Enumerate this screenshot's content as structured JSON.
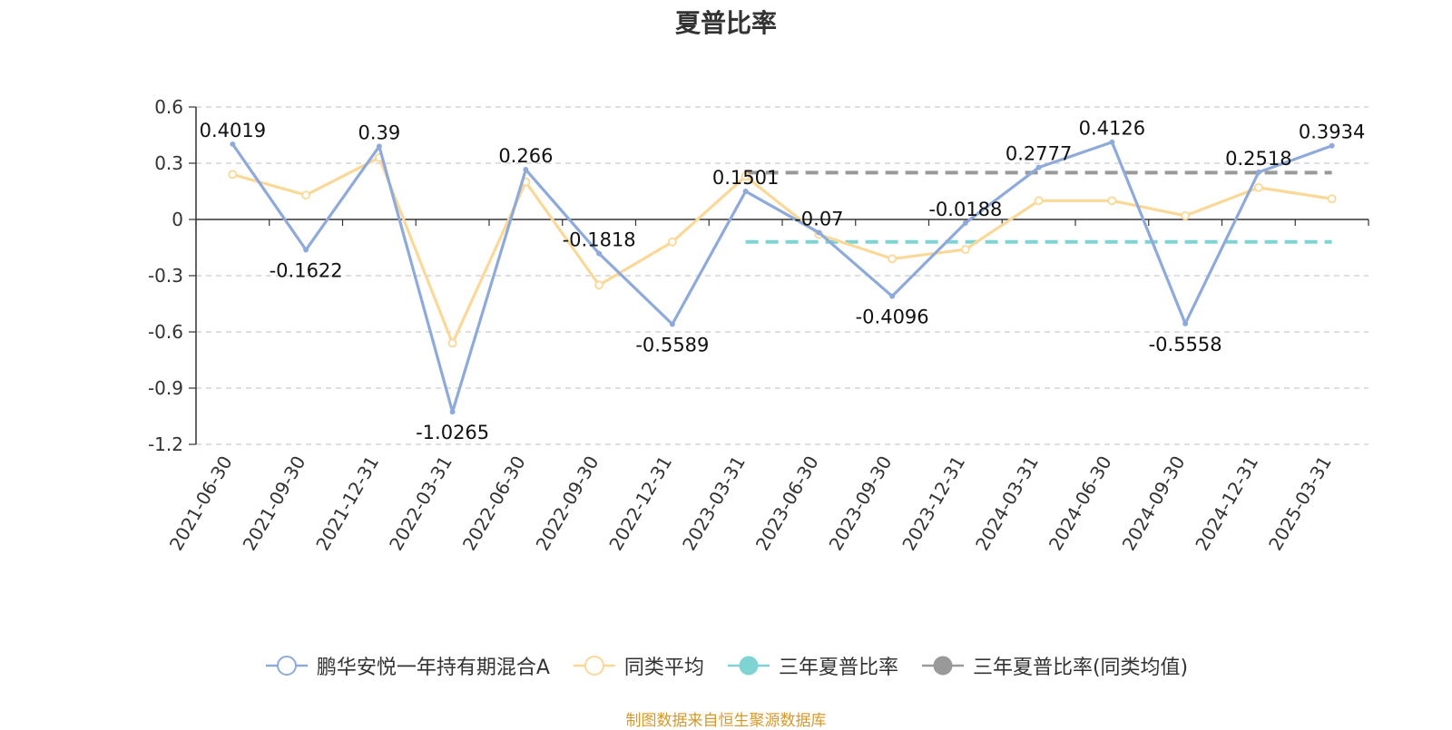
{
  "chart_data": {
    "type": "line",
    "title": "夏普比率",
    "categories": [
      "2021-06-30",
      "2021-09-30",
      "2021-12-31",
      "2022-03-31",
      "2022-06-30",
      "2022-09-30",
      "2022-12-31",
      "2023-03-31",
      "2023-06-30",
      "2023-09-30",
      "2023-12-31",
      "2024-03-31",
      "2024-06-30",
      "2024-09-30",
      "2024-12-31",
      "2025-03-31"
    ],
    "ylim": [
      -1.2,
      0.6
    ],
    "yticks": [
      "0.6",
      "0.3",
      "0",
      "-0.3",
      "-0.6",
      "-0.9",
      "-1.2"
    ],
    "grid": true,
    "legend_position": "bottom",
    "series": [
      {
        "name": "鹏华安悦一年持有期混合A",
        "color": "#8eaadb",
        "values": [
          0.4019,
          -0.1622,
          0.39,
          -1.0265,
          0.266,
          -0.1818,
          -0.5589,
          0.1501,
          -0.07,
          -0.4096,
          -0.0188,
          0.2777,
          0.4126,
          -0.5558,
          0.2518,
          0.3934
        ],
        "labels": [
          "0.4019",
          "-0.1622",
          "0.39",
          "-1.0265",
          "0.266",
          "-0.1818",
          "-0.5589",
          "0.1501",
          "-0.07",
          "-0.4096",
          "-0.0188",
          "0.2777",
          "0.4126",
          "-0.5558",
          "0.2518",
          "0.3934"
        ]
      },
      {
        "name": "同类平均",
        "color": "#fad897",
        "values": [
          0.24,
          0.13,
          0.33,
          -0.66,
          0.2,
          -0.35,
          -0.12,
          0.23,
          -0.08,
          -0.21,
          -0.16,
          0.1,
          0.1,
          0.02,
          0.17,
          0.11
        ]
      },
      {
        "name": "三年夏普比率",
        "color": "#7fd3d3",
        "type": "reference",
        "value": -0.12,
        "from": "2023-03-31",
        "to": "2025-03-31"
      },
      {
        "name": "三年夏普比率(同类均值)",
        "color": "#999999",
        "type": "reference",
        "value": 0.25,
        "from": "2023-03-31",
        "to": "2025-03-31"
      }
    ]
  },
  "source_note": "制图数据来自恒生聚源数据库"
}
